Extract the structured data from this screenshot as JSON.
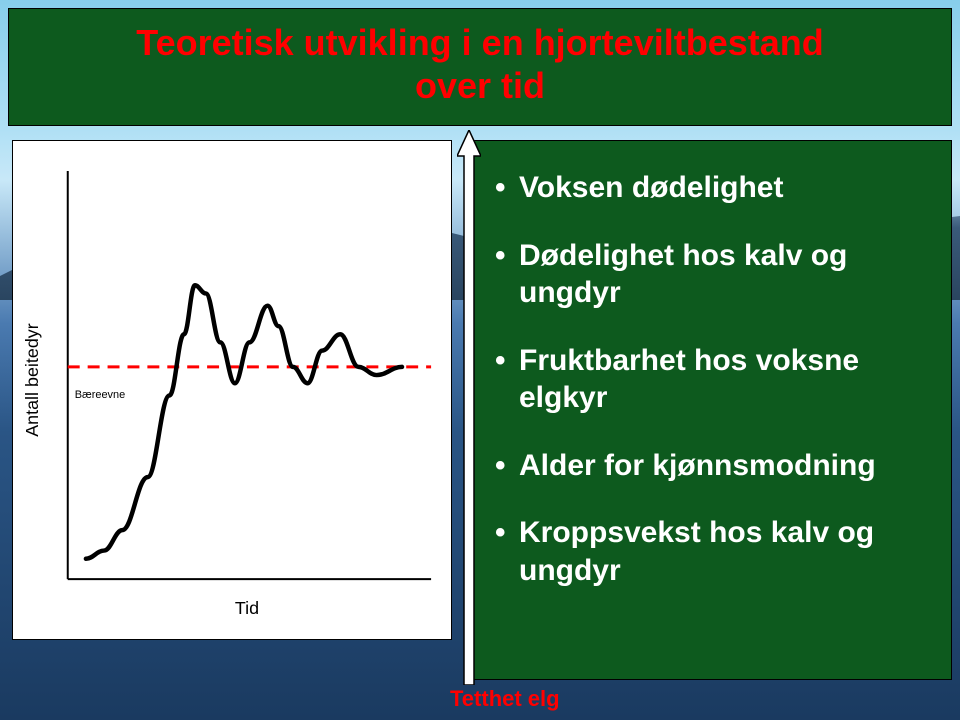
{
  "title": {
    "line1": "Teoretisk utvikling i en hjorteviltbestand",
    "line2": "over tid"
  },
  "chart": {
    "type": "line",
    "background_color": "#ffffff",
    "y_axis_label": "Antall beitedyr",
    "x_axis_label": "Tid",
    "axis_color": "#000000",
    "annotation1": "Bæreevne",
    "annotation2": "",
    "dashed_line": {
      "color": "#ff0000",
      "width": 3,
      "y_position": 0.48,
      "dash_pattern": "12 8"
    },
    "curve_color": "#000000",
    "curve_width": 4,
    "curve_points": [
      {
        "x": 0.05,
        "y": 0.95
      },
      {
        "x": 0.1,
        "y": 0.93
      },
      {
        "x": 0.15,
        "y": 0.88
      },
      {
        "x": 0.22,
        "y": 0.75
      },
      {
        "x": 0.28,
        "y": 0.55
      },
      {
        "x": 0.32,
        "y": 0.4
      },
      {
        "x": 0.35,
        "y": 0.28
      },
      {
        "x": 0.38,
        "y": 0.3
      },
      {
        "x": 0.42,
        "y": 0.42
      },
      {
        "x": 0.46,
        "y": 0.52
      },
      {
        "x": 0.5,
        "y": 0.42
      },
      {
        "x": 0.55,
        "y": 0.33
      },
      {
        "x": 0.58,
        "y": 0.38
      },
      {
        "x": 0.62,
        "y": 0.48
      },
      {
        "x": 0.66,
        "y": 0.52
      },
      {
        "x": 0.7,
        "y": 0.44
      },
      {
        "x": 0.75,
        "y": 0.4
      },
      {
        "x": 0.8,
        "y": 0.48
      },
      {
        "x": 0.85,
        "y": 0.5
      },
      {
        "x": 0.92,
        "y": 0.48
      }
    ]
  },
  "side_panel": {
    "background_color": "#0d5a1e",
    "text_color": "#ffffff",
    "items": [
      "Voksen dødelighet",
      "Dødelighet hos kalv og ungdyr",
      "Fruktbarhet hos voksne elgkyr",
      "Alder for kjønnsmodning",
      "Kroppsvekst hos kalv og ungdyr"
    ]
  },
  "arrow": {
    "fill_color": "#ffffff",
    "border_color": "#000000"
  },
  "footer_label": "Tetthet elg",
  "footer_color": "#ff0000"
}
